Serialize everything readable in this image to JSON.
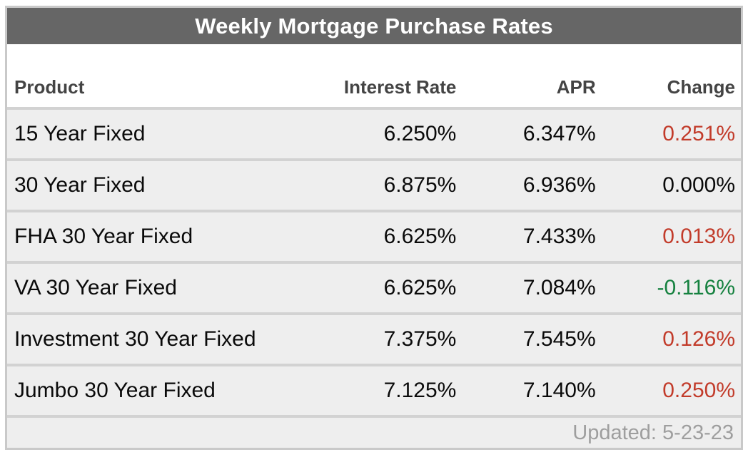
{
  "widget_title": "Weekly Mortgage Purchase Rates",
  "chart_data": {
    "type": "table",
    "title": "Weekly Mortgage Purchase Rates",
    "columns": [
      "Product",
      "Interest Rate",
      "APR",
      "Change"
    ],
    "rows": [
      {
        "product": "15 Year Fixed",
        "interest_rate": "6.250%",
        "apr": "6.347%",
        "change": "0.251%"
      },
      {
        "product": "30 Year Fixed",
        "interest_rate": "6.875%",
        "apr": "6.936%",
        "change": "0.000%"
      },
      {
        "product": "FHA 30 Year Fixed",
        "interest_rate": "6.625%",
        "apr": "7.433%",
        "change": "0.013%"
      },
      {
        "product": "VA 30 Year Fixed",
        "interest_rate": "6.625%",
        "apr": "7.084%",
        "change": "-0.116%"
      },
      {
        "product": "Investment 30 Year Fixed",
        "interest_rate": "7.375%",
        "apr": "7.545%",
        "change": "0.126%"
      },
      {
        "product": "Jumbo 30 Year Fixed",
        "interest_rate": "7.125%",
        "apr": "7.140%",
        "change": "0.250%"
      }
    ],
    "footer": "Updated: 5-23-23",
    "layout": {
      "numeric_alignment": "right",
      "row_striping": "none",
      "grid": "horizontal-separators"
    }
  },
  "colors": {
    "title_bar_bg": "#666666",
    "title_text": "#ffffff",
    "column_header_text": "#444444",
    "row_bg": "#eeeeee",
    "row_separator": "#d2d2d2",
    "outer_border": "#c9c9c9",
    "data_text": "#0a0a0a",
    "change_positive": "#c23b2a",
    "change_negative": "#15813f",
    "change_zero": "#0a0a0a",
    "footer_text": "#9e9e9e"
  }
}
